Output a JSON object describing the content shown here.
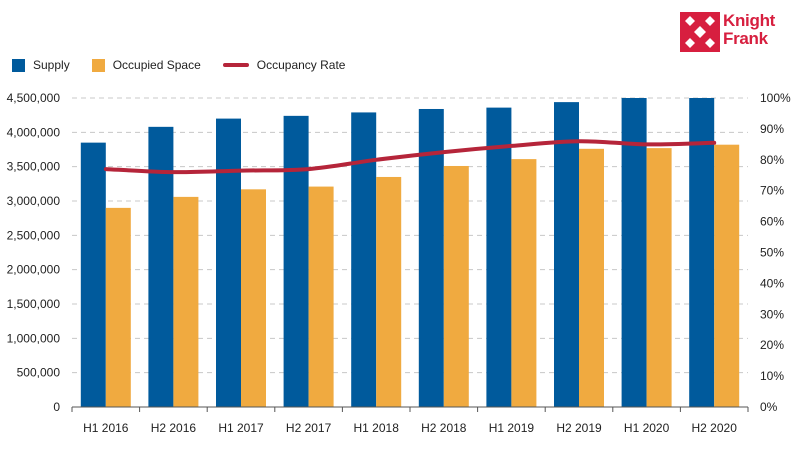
{
  "colors": {
    "supply": "#005a9c",
    "occupied": "#f0aa40",
    "rate": "#b5253a",
    "grid": "#c8c8c8",
    "axis": "#555555",
    "text": "#222222",
    "brand": "#d71f3f"
  },
  "logo": {
    "line1": "Knight",
    "line2": "Frank",
    "icon": "knight-frank-logo-icon"
  },
  "legend": [
    {
      "label": "Supply",
      "key": "supply",
      "kind": "bar"
    },
    {
      "label": "Occupied Space",
      "key": "occupied",
      "kind": "bar"
    },
    {
      "label": "Occupancy Rate",
      "key": "rate",
      "kind": "line"
    }
  ],
  "chart_data": {
    "type": "bar",
    "categories": [
      "H1 2016",
      "H2 2016",
      "H1 2017",
      "H2 2017",
      "H1 2018",
      "H2 2018",
      "H1 2019",
      "H2 2019",
      "H1 2020",
      "H2 2020"
    ],
    "series": [
      {
        "name": "Supply",
        "type": "bar",
        "axis": "left",
        "values": [
          3850000,
          4080000,
          4200000,
          4240000,
          4290000,
          4340000,
          4360000,
          4440000,
          4500000,
          4500000
        ]
      },
      {
        "name": "Occupied Space",
        "type": "bar",
        "axis": "left",
        "values": [
          2900000,
          3060000,
          3170000,
          3210000,
          3350000,
          3510000,
          3610000,
          3760000,
          3770000,
          3820000
        ]
      },
      {
        "name": "Occupancy Rate",
        "type": "line",
        "axis": "right",
        "unit": "%",
        "values": [
          77,
          76,
          76.5,
          77,
          80,
          82.5,
          84.5,
          86,
          85,
          85.5
        ]
      }
    ],
    "y_left": {
      "range": [
        0,
        4500000
      ],
      "ticks": [
        "0",
        "500,000",
        "1,000,000",
        "1,500,000",
        "2,000,000",
        "2,500,000",
        "3,000,000",
        "3,500,000",
        "4,000,000",
        "4,500,000"
      ]
    },
    "y_right": {
      "range": [
        0,
        100
      ],
      "ticks": [
        "0%",
        "10%",
        "20%",
        "30%",
        "40%",
        "50%",
        "60%",
        "70%",
        "80%",
        "90%",
        "100%"
      ]
    },
    "title": "",
    "xlabel": "",
    "ylabel": "",
    "grid": "horizontal-dashed",
    "legend_position": "top-left"
  }
}
